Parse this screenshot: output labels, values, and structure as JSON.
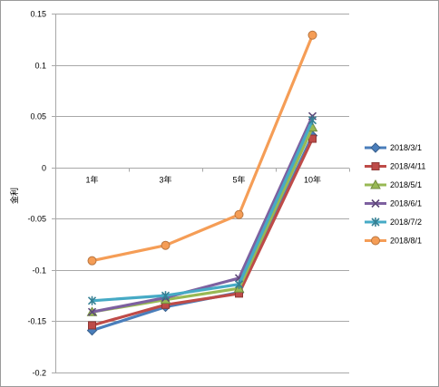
{
  "chart_data": {
    "type": "line",
    "title": "",
    "xlabel": "",
    "ylabel": "金利",
    "categories": [
      "1年",
      "3年",
      "5年",
      "10年"
    ],
    "ylim": [
      -0.2,
      0.15
    ],
    "yticks": [
      0.15,
      0.1,
      0.05,
      0,
      -0.05,
      -0.1,
      -0.15,
      -0.2
    ],
    "ytick_labels": [
      "0.15",
      "0.1",
      "0.05",
      "0",
      "-0.05",
      "-0.1",
      "-0.15",
      "-0.2"
    ],
    "grid": true,
    "legend_position": "right",
    "series": [
      {
        "name": "2018/3/1",
        "values": [
          -0.159,
          -0.136,
          -0.122,
          0.031
        ],
        "color": "#4a7ebb",
        "marker": "diamond"
      },
      {
        "name": "2018/4/11",
        "values": [
          -0.154,
          -0.134,
          -0.123,
          0.028
        ],
        "color": "#be4b48",
        "marker": "square"
      },
      {
        "name": "2018/5/1",
        "values": [
          -0.141,
          -0.129,
          -0.118,
          0.039
        ],
        "color": "#98b954",
        "marker": "triangle"
      },
      {
        "name": "2018/6/1",
        "values": [
          -0.141,
          -0.127,
          -0.108,
          0.05
        ],
        "color": "#7d60a0",
        "marker": "x"
      },
      {
        "name": "2018/7/2",
        "values": [
          -0.13,
          -0.125,
          -0.114,
          0.046
        ],
        "color": "#46aac5",
        "marker": "asterisk"
      },
      {
        "name": "2018/8/1",
        "values": [
          -0.091,
          -0.076,
          -0.046,
          0.129
        ],
        "color": "#f59d56",
        "marker": "circle"
      }
    ]
  }
}
